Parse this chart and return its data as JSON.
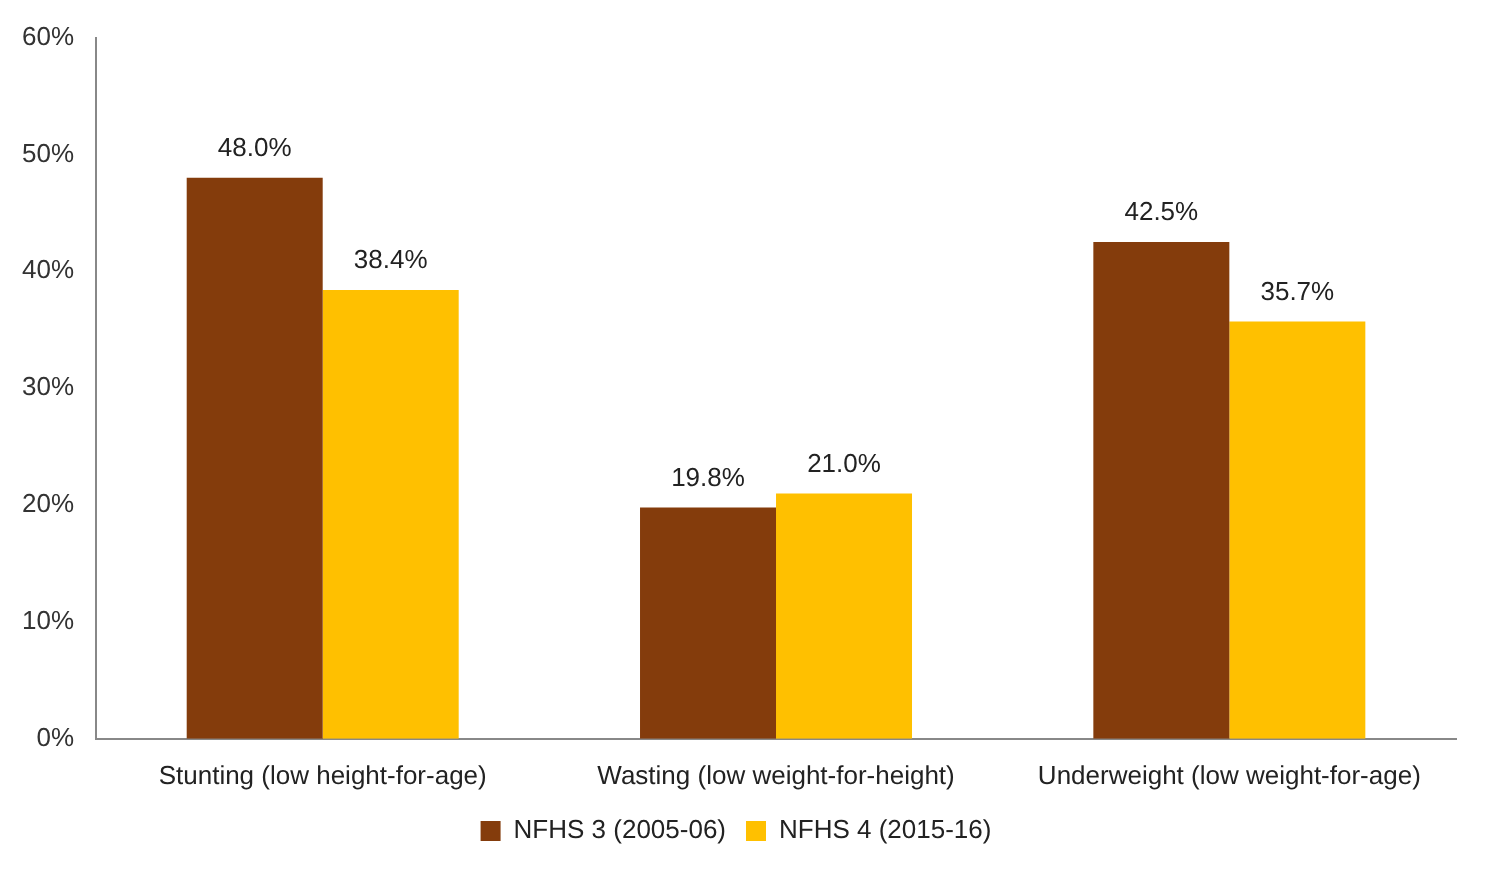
{
  "chart_data": {
    "type": "bar",
    "categories": [
      "Stunting (low height-for-age)",
      "Wasting (low weight-for-height)",
      "Underweight (low weight-for-age)"
    ],
    "series": [
      {
        "name": "NFHS 3 (2005-06)",
        "color": "#843c0c",
        "values": [
          48.0,
          19.8,
          42.5
        ],
        "value_labels": [
          "48.0%",
          "19.8%",
          "42.5%"
        ]
      },
      {
        "name": "NFHS 4 (2015-16)",
        "color": "#ffc000",
        "values": [
          38.4,
          21.0,
          35.7
        ],
        "value_labels": [
          "38.4%",
          "21.0%",
          "35.7%"
        ]
      }
    ],
    "ylim": [
      0,
      60
    ],
    "yticks": [
      {
        "value": 0,
        "label": "0%"
      },
      {
        "value": 10,
        "label": "10%"
      },
      {
        "value": 20,
        "label": "20%"
      },
      {
        "value": 30,
        "label": "30%"
      },
      {
        "value": 40,
        "label": "40%"
      },
      {
        "value": 50,
        "label": "50%"
      },
      {
        "value": 60,
        "label": "60%"
      }
    ],
    "grid": false,
    "legend": "bottom"
  }
}
